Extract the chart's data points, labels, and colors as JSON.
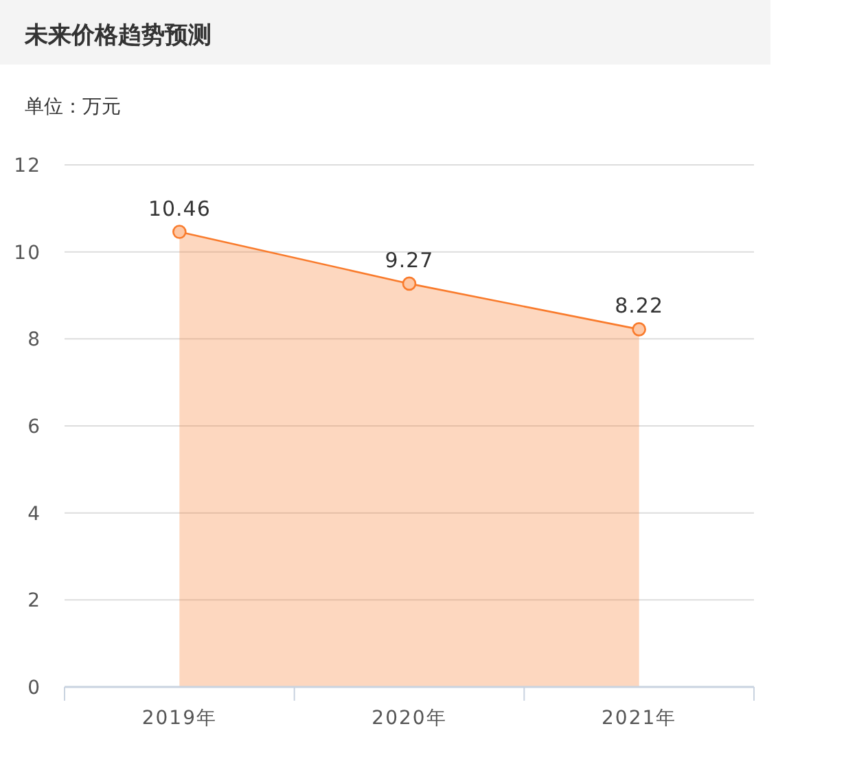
{
  "chart_data": {
    "type": "area",
    "title": "未来价格趋势预测",
    "ylabel": "单位：万元",
    "categories": [
      "2019年",
      "2020年",
      "2021年"
    ],
    "values": [
      10.46,
      9.27,
      8.22
    ],
    "color": "#f97b2c",
    "ylim": [
      0,
      12
    ],
    "yticks": [
      0,
      2,
      4,
      6,
      8,
      10,
      12
    ],
    "grid": "y",
    "marker": "circle",
    "data_labels": true
  }
}
